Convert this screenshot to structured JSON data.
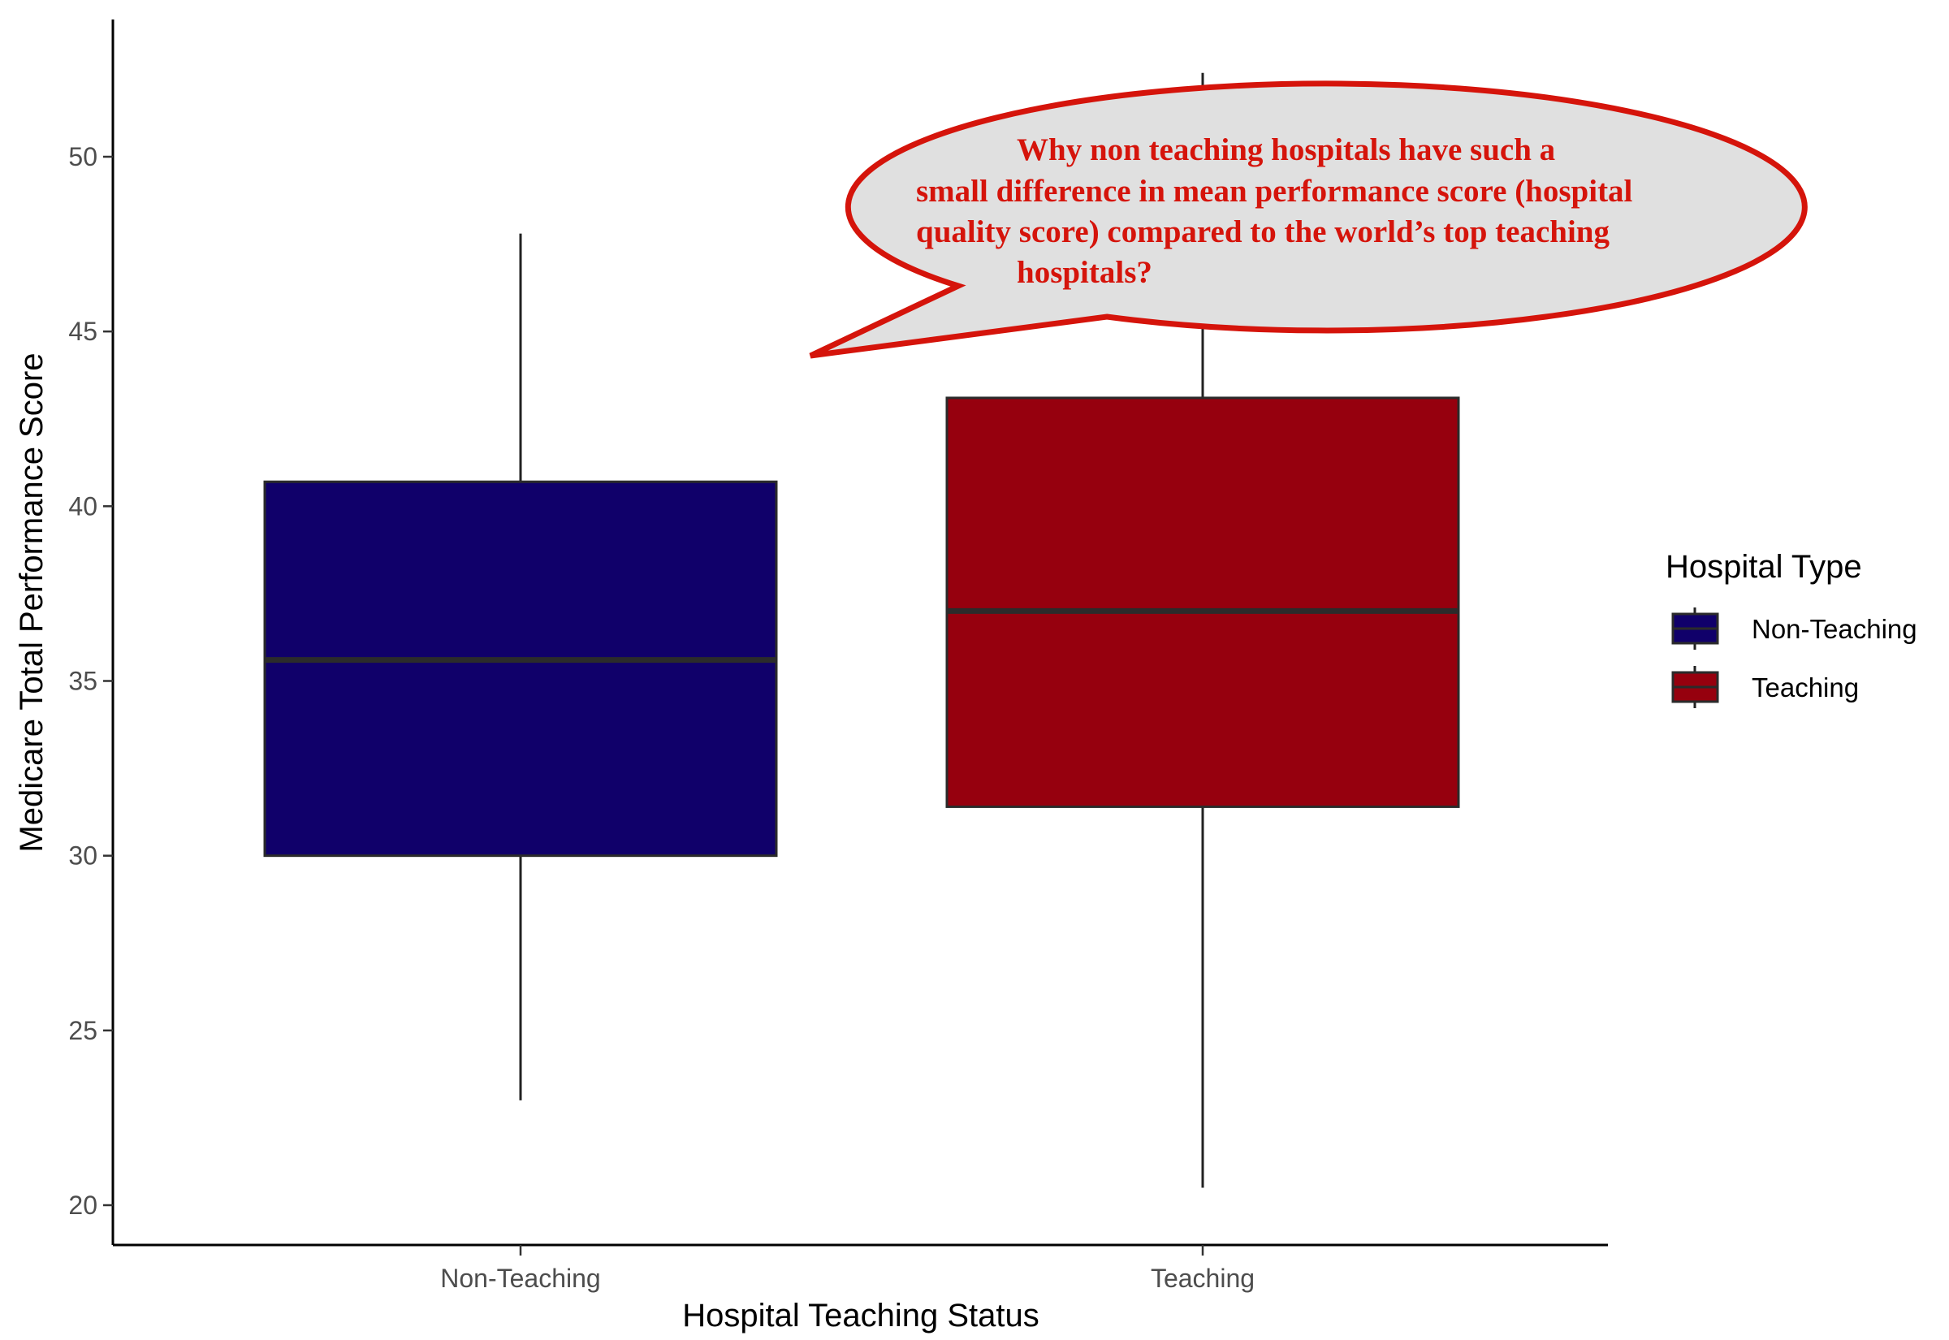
{
  "chart_data": {
    "type": "box",
    "categories": [
      "Non-Teaching",
      "Teaching"
    ],
    "series": [
      {
        "name": "Non-Teaching",
        "color": "#10006a",
        "whisker_low": 23.0,
        "q1": 30.0,
        "median": 35.6,
        "q3": 40.7,
        "whisker_high": 47.8
      },
      {
        "name": "Teaching",
        "color": "#96000e",
        "whisker_low": 20.5,
        "q1": 31.4,
        "median": 37.0,
        "q3": 43.1,
        "whisker_high": 52.4
      }
    ],
    "xlabel": "Hospital Teaching Status",
    "ylabel": "Medicare Total Performance Score",
    "ylim": [
      18.9,
      53.9
    ],
    "yticks": [
      20,
      25,
      30,
      35,
      40,
      45,
      50
    ],
    "grid": false,
    "legend": {
      "title": "Hospital Type",
      "placement": "right"
    },
    "annotation": {
      "lines": [
        "Why non teaching hospitals have such a",
        "small difference in mean performance score (hospital",
        "quality score) compared to the world’s top teaching",
        "hospitals?"
      ],
      "text_color": "#d5140b",
      "border_color": "#d5140b",
      "fill_color": "#e0e0e0"
    }
  }
}
